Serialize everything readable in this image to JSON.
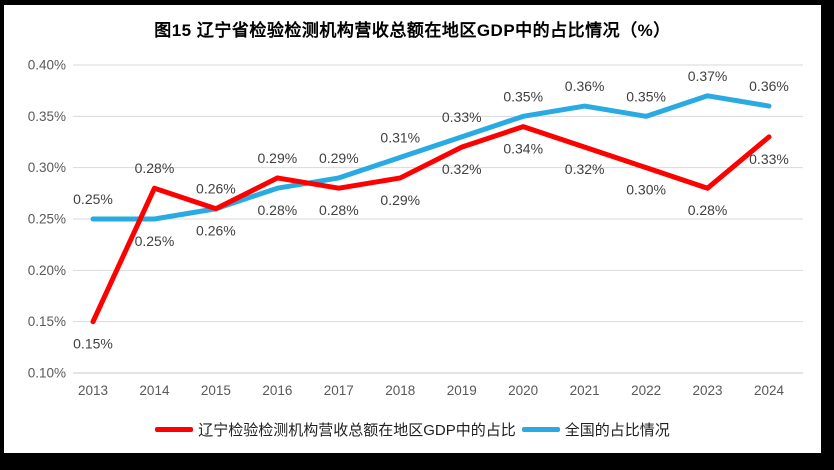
{
  "page": {
    "title": "图15 辽宁省检验检测机构营收总额在地区GDP中的占比情况（%）"
  },
  "chart_data": {
    "type": "line",
    "title": "图15 辽宁省检验检测机构营收总额在地区GDP中的占比情况（%）",
    "categories": [
      "2013",
      "2014",
      "2015",
      "2016",
      "2017",
      "2018",
      "2019",
      "2020",
      "2021",
      "2022",
      "2023",
      "2024"
    ],
    "series": [
      {
        "name": "辽宁检验检测机构营收总额在地区GDP中的占比",
        "color": "#ff0000",
        "values": [
          0.15,
          0.28,
          0.26,
          0.29,
          0.28,
          0.29,
          0.32,
          0.34,
          0.32,
          0.3,
          0.28,
          0.33
        ],
        "labels": [
          "0.15%",
          "0.28%",
          "0.26%",
          "0.29%",
          "0.28%",
          "0.29%",
          "0.32%",
          "0.34%",
          "0.32%",
          "0.30%",
          "0.28%",
          "0.33%"
        ],
        "label_side": [
          "below",
          "above",
          "above",
          "above",
          "below",
          "below",
          "below",
          "below",
          "below",
          "below",
          "below",
          "below"
        ]
      },
      {
        "name": "全国的占比情况",
        "color": "#29abe2",
        "values": [
          0.25,
          0.25,
          0.26,
          0.28,
          0.29,
          0.31,
          0.33,
          0.35,
          0.36,
          0.35,
          0.37,
          0.36
        ],
        "labels": [
          "0.25%",
          "0.25%",
          "0.26%",
          "0.28%",
          "0.29%",
          "0.31%",
          "0.33%",
          "0.35%",
          "0.36%",
          "0.35%",
          "0.37%",
          "0.36%"
        ],
        "label_side": [
          "above",
          "below",
          "below",
          "below",
          "above",
          "above",
          "above",
          "above",
          "above",
          "above",
          "above",
          "above"
        ]
      }
    ],
    "y_axis": {
      "min": 0.1,
      "max": 0.4,
      "step": 0.05,
      "tick_labels": [
        "0.10%",
        "0.15%",
        "0.20%",
        "0.25%",
        "0.30%",
        "0.35%",
        "0.40%"
      ]
    },
    "grid": true,
    "legend_position": "bottom",
    "colors": {
      "gridline": "#d9d9d9",
      "axis_line": "#c9c9c9",
      "axis_text": "#595959",
      "data_label_text": "#404040",
      "title_text": "#000000",
      "frame": "#000000",
      "background": "#ffffff"
    }
  }
}
